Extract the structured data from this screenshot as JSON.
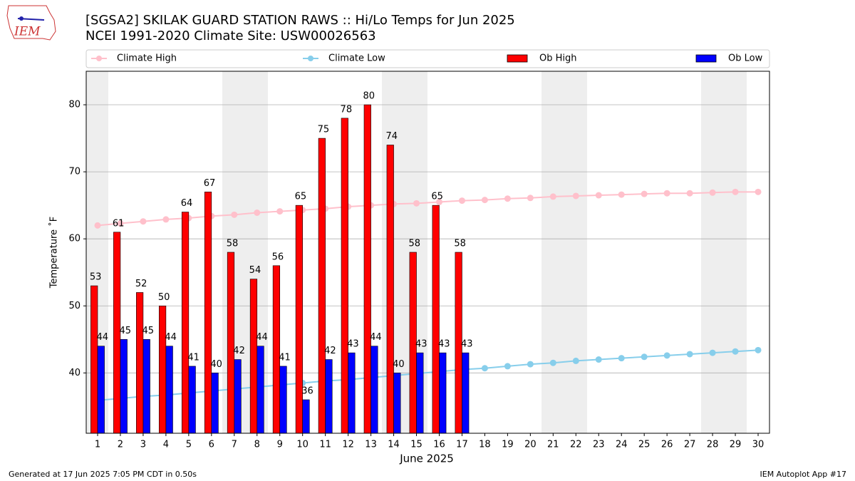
{
  "logo_text": "IEM",
  "chart_data": {
    "type": "bar",
    "title": "[SGSA2] SKILAK GUARD STATION RAWS :: Hi/Lo Temps for Jun 2025",
    "subtitle": "NCEI 1991-2020 Climate Site: USW00026563",
    "x_label": "June 2025",
    "y_label": "Temperature ˚F",
    "footer_left": "Generated at 17 Jun 2025 7:05 PM CDT in 0.50s",
    "footer_right": "IEM Autoplot App #17",
    "x": [
      1,
      2,
      3,
      4,
      5,
      6,
      7,
      8,
      9,
      10,
      11,
      12,
      13,
      14,
      15,
      16,
      17,
      18,
      19,
      20,
      21,
      22,
      23,
      24,
      25,
      26,
      27,
      28,
      29,
      30
    ],
    "xlim": [
      0.5,
      30.5
    ],
    "xticks": [
      1,
      2,
      3,
      4,
      5,
      6,
      7,
      8,
      9,
      10,
      11,
      12,
      13,
      14,
      15,
      16,
      17,
      18,
      19,
      20,
      21,
      22,
      23,
      24,
      25,
      26,
      27,
      28,
      29,
      30
    ],
    "ylim": [
      31,
      85
    ],
    "yticks": [
      40,
      50,
      60,
      70,
      80
    ],
    "grid": true,
    "legend": "top",
    "series": [
      {
        "name": "Climate High",
        "type": "line",
        "color": "#ffc0cb",
        "values": [
          62,
          62.3,
          62.6,
          62.9,
          63.1,
          63.4,
          63.6,
          63.9,
          64.1,
          64.3,
          64.5,
          64.8,
          65,
          65.2,
          65.3,
          65.5,
          65.7,
          65.8,
          66,
          66.1,
          66.3,
          66.4,
          66.5,
          66.6,
          66.7,
          66.8,
          66.8,
          66.9,
          67,
          67
        ]
      },
      {
        "name": "Climate Low",
        "type": "line",
        "color": "#87ceeb",
        "values": [
          35.9,
          36.2,
          36.5,
          36.7,
          37,
          37.3,
          37.6,
          37.9,
          38.2,
          38.5,
          38.8,
          39,
          39.3,
          39.6,
          39.9,
          40.2,
          40.5,
          40.7,
          41,
          41.3,
          41.5,
          41.8,
          42,
          42.2,
          42.4,
          42.6,
          42.8,
          43,
          43.2,
          43.4
        ]
      },
      {
        "name": "Ob High",
        "type": "bar",
        "color": "#ff0000",
        "values": [
          53,
          61,
          52,
          50,
          64,
          67,
          58,
          54,
          56,
          65,
          75,
          78,
          80,
          74,
          58,
          65,
          58,
          null,
          null,
          null,
          null,
          null,
          null,
          null,
          null,
          null,
          null,
          null,
          null,
          null
        ]
      },
      {
        "name": "Ob Low",
        "type": "bar",
        "color": "#0000ff",
        "values": [
          44,
          45,
          45,
          44,
          41,
          40,
          42,
          44,
          41,
          36,
          42,
          43,
          44,
          40,
          43,
          43,
          43,
          null,
          null,
          null,
          null,
          null,
          null,
          null,
          null,
          null,
          null,
          null,
          null,
          null
        ]
      }
    ]
  }
}
